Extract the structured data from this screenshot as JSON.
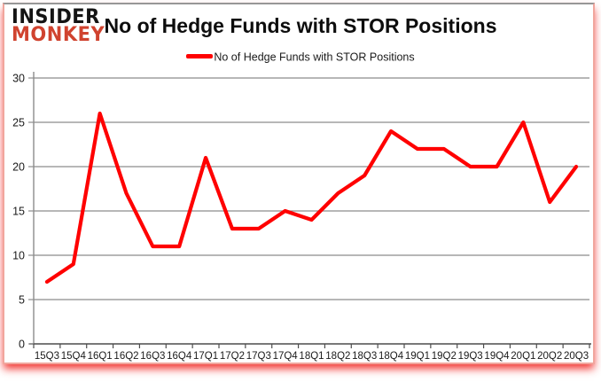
{
  "logo": {
    "line1": "INSIDER",
    "line2": "MONKEY",
    "accent_color": "#d0432f"
  },
  "header": {
    "title": "No of Hedge Funds with STOR Positions"
  },
  "legend": {
    "label": "No of Hedge Funds with STOR Positions",
    "swatch_color": "#ff0000"
  },
  "chart_data": {
    "type": "line",
    "title": "No of Hedge Funds with STOR Positions",
    "categories": [
      "15Q3",
      "15Q4",
      "16Q1",
      "16Q2",
      "16Q3",
      "16Q4",
      "17Q1",
      "17Q2",
      "17Q3",
      "17Q4",
      "18Q1",
      "18Q2",
      "18Q3",
      "18Q4",
      "19Q1",
      "19Q2",
      "19Q3",
      "19Q4",
      "20Q1",
      "20Q2",
      "20Q3"
    ],
    "series": [
      {
        "name": "No of Hedge Funds with STOR Positions",
        "color": "#ff0000",
        "values": [
          7,
          9,
          26,
          17,
          11,
          11,
          21,
          13,
          13,
          15,
          14,
          17,
          19,
          24,
          22,
          22,
          20,
          20,
          25,
          16,
          20
        ]
      }
    ],
    "xlabel": "",
    "ylabel": "",
    "ylim": [
      0,
      30
    ],
    "ytick_step": 5,
    "grid": true,
    "legend_position": "top"
  },
  "colors": {
    "line": "#ff0000",
    "grid": "#8c8c8c",
    "axis": "#4d4d4d",
    "tick_text": "#1a1a1a",
    "frame_side": "#f1a69d",
    "frame_top": "#979797",
    "bottom_glow": "#f0140f"
  }
}
